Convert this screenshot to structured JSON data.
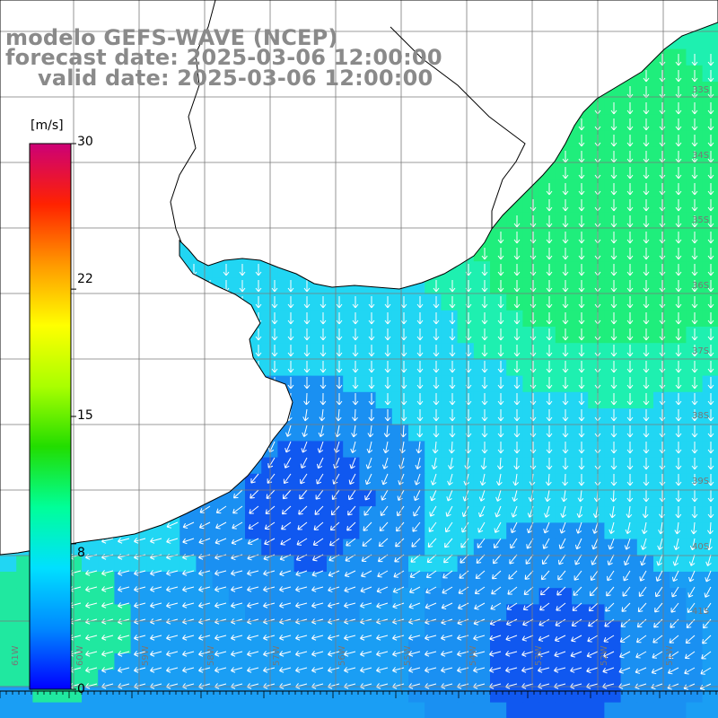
{
  "title": {
    "line1": "modelo GEFS-WAVE (NCEP)",
    "line2": "forecast date: 2025-03-06 12:00:00",
    "line3": "valid date: 2025-03-06 12:00:00"
  },
  "colorbar": {
    "unit": "[m/s]",
    "ticks": [
      "30",
      "22",
      "15",
      "8",
      "0"
    ],
    "tick_values": [
      30,
      22,
      15,
      8,
      0
    ],
    "range": [
      0,
      30
    ],
    "colors": [
      "#0000ff",
      "#0088ff",
      "#00e0ff",
      "#00ff99",
      "#22dd00",
      "#aaff00",
      "#ffff00",
      "#ff9900",
      "#ff2200",
      "#cc0077"
    ]
  },
  "axes": {
    "lat_labels": [
      "33S",
      "34S",
      "35S",
      "36S",
      "37S",
      "38S",
      "39S",
      "40S",
      "41S"
    ],
    "lat_values": [
      -33,
      -34,
      -35,
      -36,
      -37,
      -38,
      -39,
      -40,
      -41
    ],
    "lon_labels": [
      "61W",
      "60W",
      "59W",
      "58W",
      "57W",
      "56W",
      "55W",
      "54W",
      "53W",
      "52W",
      "51W"
    ],
    "lon_values": [
      -61,
      -60,
      -59,
      -58,
      -57,
      -56,
      -55,
      -54,
      -53,
      -52,
      -51
    ]
  },
  "map": {
    "ocean_color": "#22d8f0",
    "land_color": "#ffffff",
    "grid": true,
    "vector_color": "#ffffff",
    "wind_field_note_colors": {
      "weak": "#1060f0",
      "moderate": "#1fd6f5",
      "strong": "#20f080"
    }
  }
}
